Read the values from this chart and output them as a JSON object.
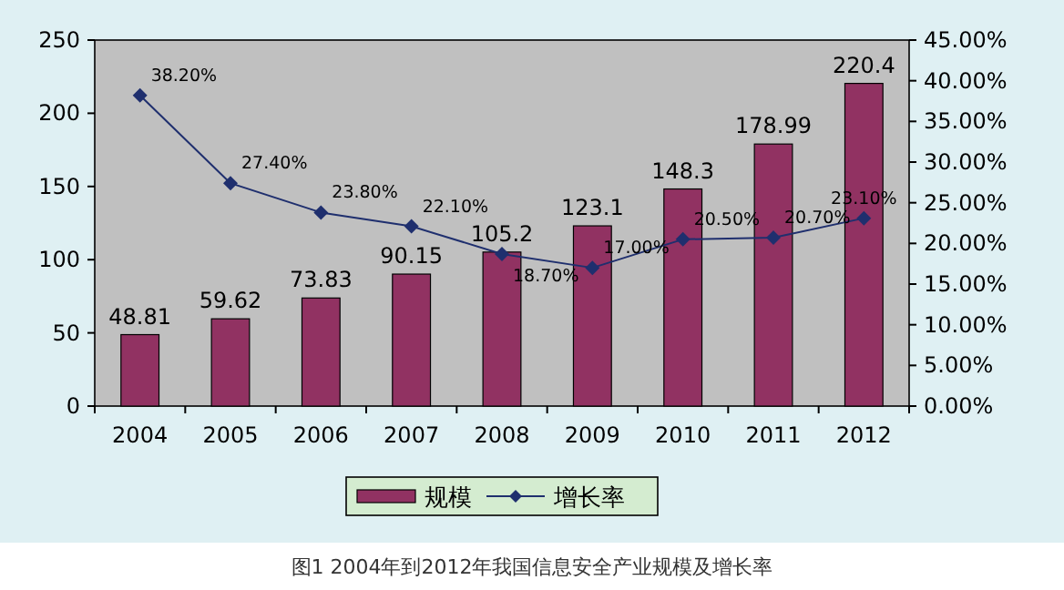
{
  "chart_data": {
    "type": "bar",
    "categories": [
      "2004",
      "2005",
      "2006",
      "2007",
      "2008",
      "2009",
      "2010",
      "2011",
      "2012"
    ],
    "series": [
      {
        "name": "规模",
        "color": "#913262",
        "values": [
          48.81,
          59.62,
          73.83,
          90.15,
          105.2,
          123.1,
          148.3,
          178.99,
          220.4
        ],
        "value_labels": [
          "48.81",
          "59.62",
          "73.83",
          "90.15",
          "105.2",
          "123.1",
          "148.3",
          "178.99",
          "220.4"
        ]
      },
      {
        "name": "增长率",
        "type": "line",
        "axis": "y2",
        "color": "#1f2f6e",
        "marker": "diamond",
        "values": [
          38.2,
          27.4,
          23.8,
          22.1,
          18.7,
          17.0,
          20.5,
          20.7,
          23.1
        ],
        "value_labels": [
          "38.20%",
          "27.40%",
          "23.80%",
          "22.10%",
          "18.70%",
          "17.00%",
          "20.50%",
          "20.70%",
          "23.10%"
        ]
      }
    ],
    "ylim": [
      0,
      250
    ],
    "yticks": [
      0,
      50,
      100,
      150,
      200,
      250
    ],
    "y2lim": [
      0,
      45
    ],
    "y2ticks": [
      {
        "value": 0,
        "label": "0.00%"
      },
      {
        "value": 5,
        "label": "5.00%"
      },
      {
        "value": 10,
        "label": "10.00%"
      },
      {
        "value": 15,
        "label": "15.00%"
      },
      {
        "value": 20,
        "label": "20.00%"
      },
      {
        "value": 25,
        "label": "25.00%"
      },
      {
        "value": 30,
        "label": "30.00%"
      },
      {
        "value": 35,
        "label": "35.00%"
      },
      {
        "value": 40,
        "label": "40.00%"
      },
      {
        "value": 45,
        "label": "45.00%"
      }
    ],
    "legend": "bottom",
    "grid": false,
    "annotations": [
      "图1 2004年到2012年我国信息安全产业规模及增长率"
    ]
  }
}
